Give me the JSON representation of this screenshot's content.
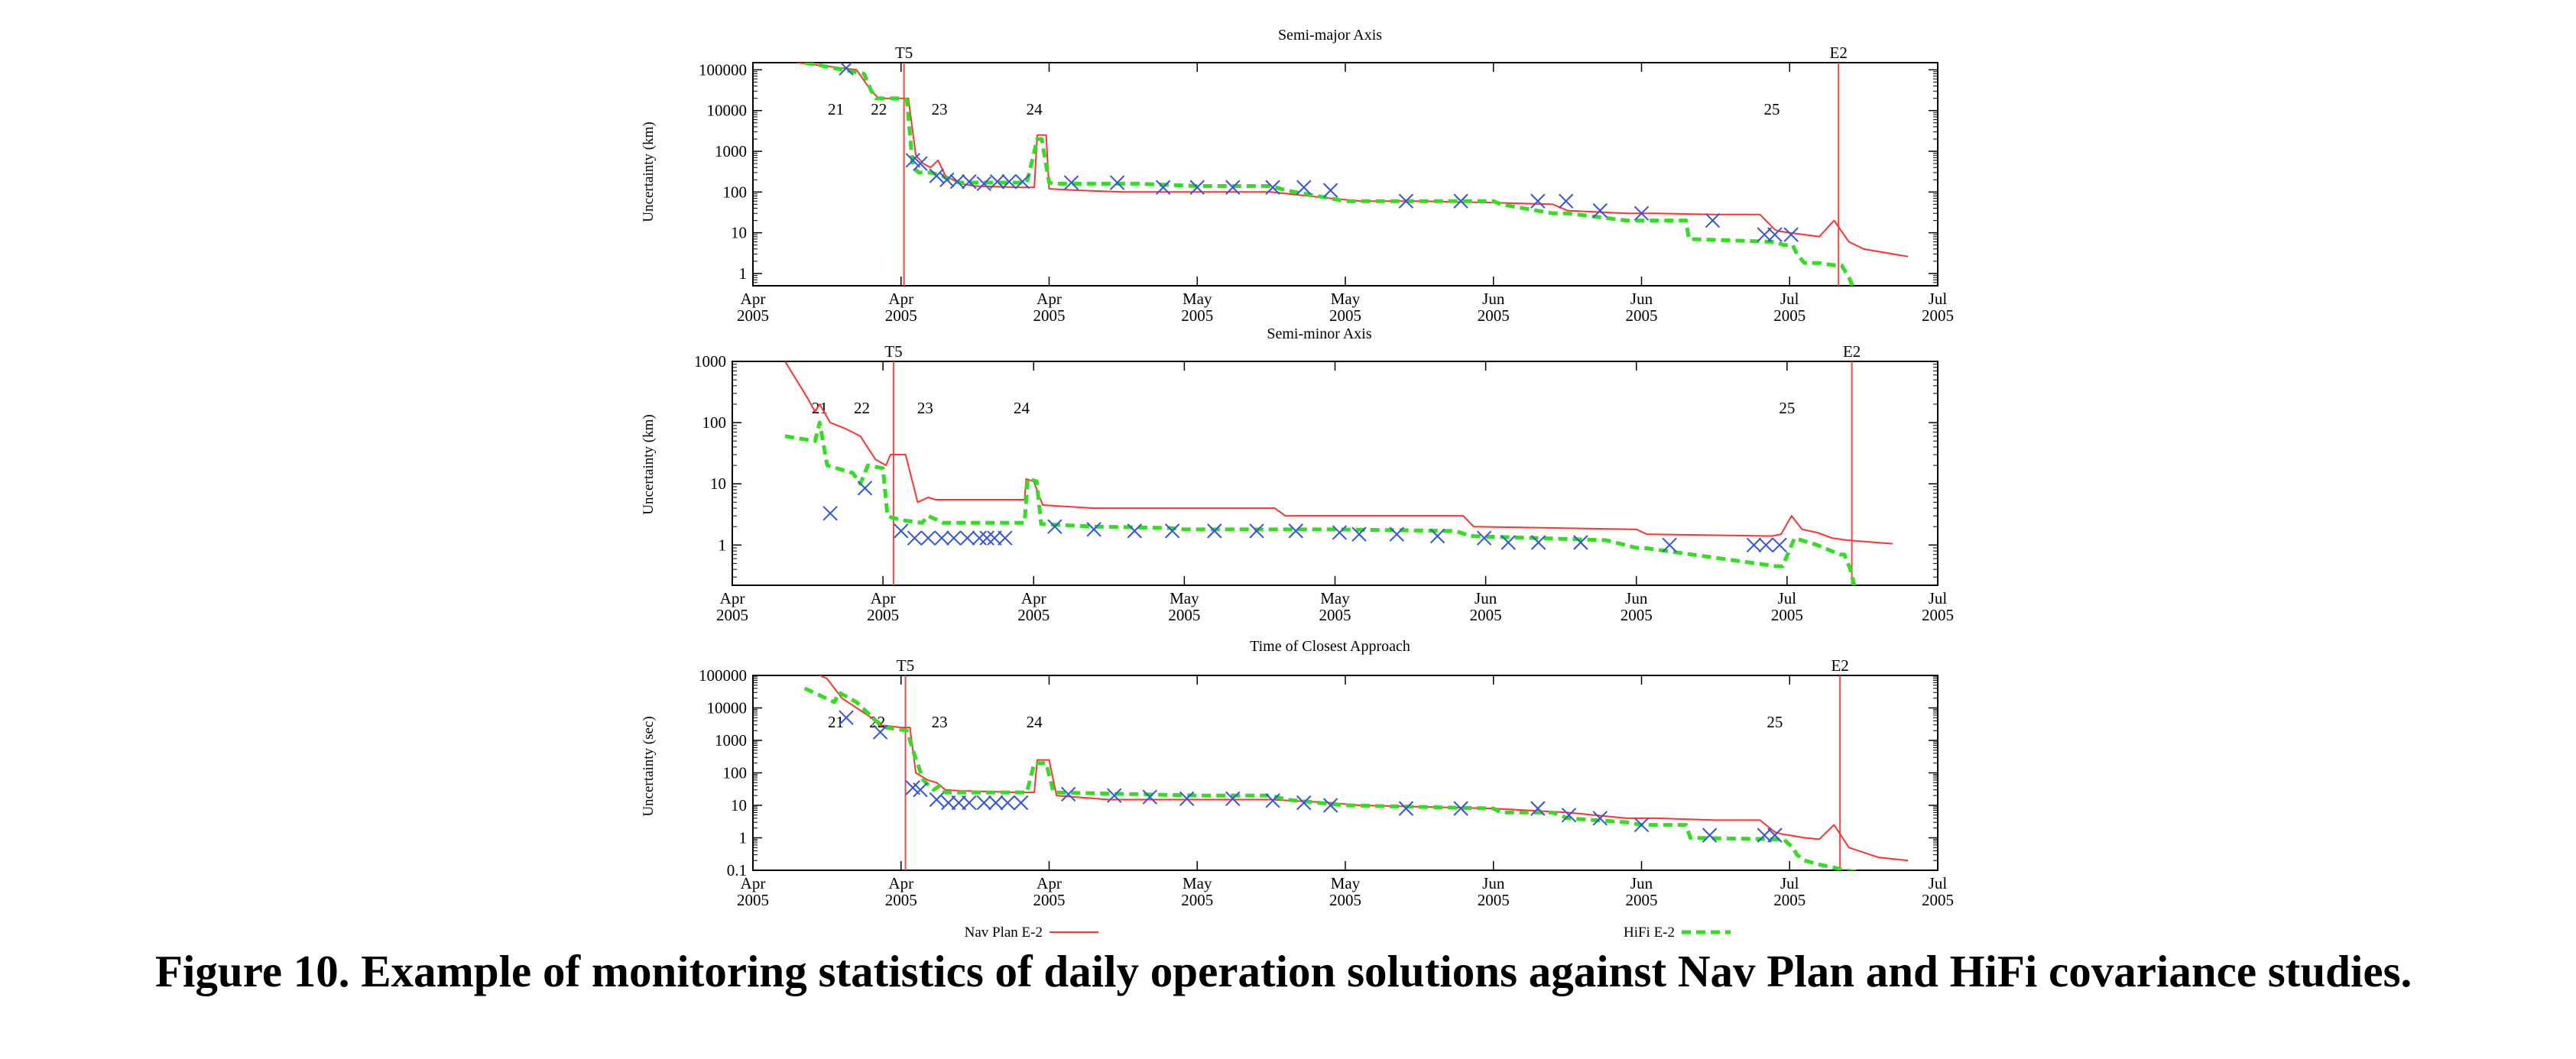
{
  "caption": "Figure 10. Example of monitoring statistics of daily operation solutions against Nav Plan and HiFi covariance studies.",
  "colors": {
    "nav_plan": "#ff3333",
    "hifi": "#33dd22",
    "daily_solution": "#3355dd",
    "event_line": "#ff4444"
  },
  "legend": [
    {
      "label": "Nav Plan E-2",
      "style": "solid-red"
    },
    {
      "label": "HiFi E-2",
      "style": "dashed-green"
    }
  ],
  "x_tick_labels": [
    {
      "month": "Apr",
      "year": "2005"
    },
    {
      "month": "Apr",
      "year": "2005"
    },
    {
      "month": "Apr",
      "year": "2005"
    },
    {
      "month": "May",
      "year": "2005"
    },
    {
      "month": "May",
      "year": "2005"
    },
    {
      "month": "Jun",
      "year": "2005"
    },
    {
      "month": "Jun",
      "year": "2005"
    },
    {
      "month": "Jul",
      "year": "2005"
    },
    {
      "month": "Jul",
      "year": "2005"
    }
  ],
  "chart_data": [
    {
      "type": "line",
      "title": "Semi-major Axis",
      "ylabel": "Uncertainty (km)",
      "yscale": "log",
      "ylim": [
        0.5,
        150000
      ],
      "xlim": [
        0,
        80
      ],
      "ytick_labels": [
        "1",
        "10",
        "100",
        "1000",
        "10000",
        "100000"
      ],
      "ytick_values": [
        1,
        10,
        100,
        1000,
        10000,
        100000
      ],
      "events": [
        {
          "label": "T5",
          "x": 10.2
        },
        {
          "label": "E2",
          "x": 73.3
        }
      ],
      "encounters": [
        {
          "label": "21",
          "x": 5.6
        },
        {
          "label": "22",
          "x": 8.5
        },
        {
          "label": "23",
          "x": 12.6
        },
        {
          "label": "24",
          "x": 19
        },
        {
          "label": "25",
          "x": 68.8
        }
      ],
      "series": [
        {
          "name": "Nav Plan E-2",
          "style": "solid",
          "x": [
            3,
            7,
            8,
            8.5,
            10.5,
            11,
            11.5,
            12,
            12.5,
            13,
            13.5,
            14,
            15,
            18,
            19,
            19.2,
            19.8,
            20,
            22,
            25,
            30,
            32,
            35,
            39,
            41,
            45,
            50,
            54,
            55,
            59,
            61,
            65,
            68,
            69,
            69.2,
            70,
            71,
            72,
            73,
            74,
            75,
            77,
            78
          ],
          "y": [
            150000,
            100000,
            30000,
            20000,
            20000,
            800,
            500,
            400,
            600,
            250,
            200,
            160,
            140,
            130,
            130,
            2500,
            2500,
            120,
            110,
            100,
            100,
            100,
            100,
            70,
            60,
            60,
            55,
            50,
            35,
            30,
            30,
            28,
            28,
            12,
            11,
            10,
            9,
            8,
            20,
            6,
            4,
            3,
            2.6
          ]
        },
        {
          "name": "HiFi E-2",
          "style": "dashed",
          "x": [
            3.5,
            5,
            7.5,
            8,
            8.3,
            10,
            10.4,
            10.8,
            11.2,
            12,
            12.8,
            13.2,
            14,
            18.5,
            19.2,
            19.5,
            20,
            20.3,
            23,
            26,
            30,
            35,
            36,
            40,
            50,
            50.5,
            54,
            55,
            59,
            60,
            63,
            63.2,
            69,
            69.6,
            70.2,
            70.5,
            71,
            72,
            73,
            73.5,
            74,
            74.5
          ],
          "y": [
            150000,
            120000,
            80000,
            30000,
            20000,
            20000,
            18000,
            400,
            300,
            300,
            250,
            200,
            170,
            170,
            2000,
            2000,
            170,
            160,
            160,
            160,
            140,
            140,
            110,
            60,
            60,
            50,
            30,
            30,
            20,
            20,
            20,
            7,
            6,
            5,
            5,
            3,
            1.8,
            1.8,
            1.6,
            1.6,
            0.8,
            0.3
          ]
        },
        {
          "name": "daily solutions",
          "style": "x-marker",
          "x": [
            6.3,
            10.8,
            11.3,
            12.4,
            13.1,
            13.8,
            14.6,
            15.6,
            16.5,
            17.3,
            18.2,
            21.5,
            24.6,
            27.7,
            30,
            32.4,
            35.1,
            37.2,
            39,
            44.1,
            47.8,
            53,
            54.9,
            57.2,
            60,
            64.8,
            68.3,
            69,
            70.1
          ],
          "y": [
            110000,
            600,
            500,
            250,
            200,
            180,
            180,
            160,
            180,
            180,
            180,
            170,
            170,
            130,
            130,
            130,
            130,
            130,
            110,
            60,
            60,
            60,
            60,
            35,
            30,
            20,
            9,
            9,
            9
          ]
        }
      ]
    },
    {
      "type": "line",
      "title": "Semi-minor Axis",
      "ylabel": "Uncertainty (km)",
      "yscale": "log",
      "ylim": [
        0.22,
        1000
      ],
      "xlim": [
        0,
        80
      ],
      "ytick_labels": [
        "1",
        "10",
        "100",
        "1000"
      ],
      "ytick_values": [
        1,
        10,
        100,
        1000
      ],
      "events": [
        {
          "label": "T5",
          "x": 10.7
        },
        {
          "label": "E2",
          "x": 74.3
        }
      ],
      "encounters": [
        {
          "label": "21",
          "x": 5.8
        },
        {
          "label": "22",
          "x": 8.6
        },
        {
          "label": "23",
          "x": 12.8
        },
        {
          "label": "24",
          "x": 19.2
        },
        {
          "label": "25",
          "x": 70
        }
      ],
      "series": [
        {
          "name": "Nav Plan E-2",
          "style": "solid",
          "x": [
            3.5,
            5,
            5.5,
            5.8,
            6.5,
            7.5,
            8.5,
            9.5,
            10.2,
            10.5,
            11.5,
            12.3,
            13,
            13.5,
            15,
            18,
            19.4,
            19.5,
            20,
            20.6,
            24,
            31,
            36,
            36.7,
            45,
            48.5,
            49.2,
            60,
            60.7,
            69,
            69.6,
            70.3,
            71,
            72,
            73,
            74,
            77
          ],
          "y": [
            1000,
            250,
            150,
            200,
            100,
            80,
            60,
            25,
            20,
            30,
            30,
            5,
            6,
            5.5,
            5.5,
            5.5,
            5.5,
            12,
            11,
            4.5,
            4,
            4,
            4,
            3,
            3,
            3,
            2,
            1.8,
            1.5,
            1.4,
            1.5,
            3,
            1.8,
            1.6,
            1.3,
            1.2,
            1.05
          ]
        },
        {
          "name": "HiFi E-2",
          "style": "dashed",
          "x": [
            3.5,
            5.5,
            5.8,
            6.3,
            8,
            8.5,
            9,
            10,
            10.3,
            10.6,
            11.5,
            12.6,
            13,
            14,
            18,
            19.4,
            19.6,
            20.2,
            20.5,
            24,
            29,
            30,
            40,
            48,
            49,
            58,
            60,
            60.5,
            69.3,
            69.7,
            70.5,
            72,
            73.5,
            73.8,
            74.2,
            74.5
          ],
          "y": [
            60,
            50,
            100,
            20,
            15,
            10,
            20,
            18,
            3,
            2.8,
            2.5,
            2.3,
            3,
            2.3,
            2.3,
            2.3,
            12,
            11,
            2.2,
            2,
            1.9,
            1.8,
            1.8,
            1.7,
            1.4,
            1.2,
            0.9,
            0.9,
            0.45,
            0.45,
            1.3,
            1,
            0.7,
            0.7,
            0.4,
            0.2
          ]
        },
        {
          "name": "daily solutions",
          "style": "x-marker",
          "x": [
            6.5,
            8.8,
            11.2,
            12.1,
            13,
            13.9,
            14.7,
            15.6,
            16.4,
            16.9,
            17.4,
            18.1,
            21.4,
            24,
            26.7,
            29.2,
            32,
            34.8,
            37.4,
            40.3,
            41.6,
            44.1,
            46.8,
            49.9,
            51.5,
            53.5,
            56.3,
            62.2,
            67.8,
            68.6,
            69.5
          ],
          "y": [
            3.3,
            8.5,
            1.7,
            1.3,
            1.3,
            1.3,
            1.3,
            1.3,
            1.3,
            1.3,
            1.3,
            1.3,
            2,
            1.8,
            1.7,
            1.7,
            1.7,
            1.7,
            1.7,
            1.6,
            1.5,
            1.5,
            1.4,
            1.3,
            1.1,
            1.1,
            1.1,
            1,
            1,
            1,
            1
          ]
        }
      ]
    },
    {
      "type": "line",
      "title": "Time of Closest Approach",
      "ylabel": "Uncertainty (sec)",
      "yscale": "log",
      "ylim": [
        0.1,
        100000
      ],
      "xlim": [
        0,
        80
      ],
      "ytick_labels": [
        "0.1",
        "1",
        "10",
        "100",
        "1000",
        "10000",
        "100000"
      ],
      "ytick_values": [
        0.1,
        1,
        10,
        100,
        1000,
        10000,
        100000
      ],
      "events": [
        {
          "label": "T5",
          "x": 10.3
        },
        {
          "label": "E2",
          "x": 73.4
        }
      ],
      "encounters": [
        {
          "label": "21",
          "x": 5.6
        },
        {
          "label": "22",
          "x": 8.4
        },
        {
          "label": "23",
          "x": 12.6
        },
        {
          "label": "24",
          "x": 19
        },
        {
          "label": "25",
          "x": 69
        }
      ],
      "series": [
        {
          "name": "Nav Plan E-2",
          "style": "solid",
          "x": [
            4.5,
            5,
            5.5,
            6,
            7,
            8,
            8.5,
            10,
            10.6,
            11,
            11.8,
            12.4,
            13,
            14,
            18,
            19,
            19.2,
            20,
            20.5,
            24,
            30,
            35,
            39,
            41,
            45,
            50,
            55,
            59,
            61,
            65,
            68,
            69,
            69.5,
            70,
            71,
            72,
            73,
            74,
            76,
            78
          ],
          "y": [
            100000,
            80000,
            40000,
            20000,
            10000,
            5000,
            3000,
            2500,
            2500,
            100,
            60,
            50,
            30,
            28,
            25,
            25,
            250,
            250,
            20,
            15,
            15,
            15,
            12,
            10,
            9,
            8,
            6,
            4,
            4,
            3.5,
            3.5,
            1.5,
            1.3,
            1.2,
            1,
            0.9,
            2.5,
            0.5,
            0.25,
            0.2
          ]
        },
        {
          "name": "HiFi E-2",
          "style": "dashed",
          "x": [
            3.5,
            5.5,
            5.8,
            7,
            8.3,
            9,
            10.4,
            10.8,
            11.5,
            12.2,
            12.6,
            13,
            18.5,
            19,
            19.4,
            19.8,
            20.3,
            30,
            35,
            36,
            40,
            50,
            50.5,
            54,
            55,
            59,
            60,
            63,
            63.3,
            69,
            69.6,
            70.2,
            70.5,
            71,
            72,
            73,
            73.8,
            74.5
          ],
          "y": [
            40000,
            15000,
            30000,
            15000,
            4000,
            2500,
            2000,
            500,
            60,
            30,
            40,
            25,
            25,
            200,
            200,
            200,
            25,
            20,
            20,
            15,
            10,
            8,
            6,
            6,
            4,
            3,
            2.5,
            2.5,
            1,
            0.9,
            0.9,
            0.5,
            0.3,
            0.2,
            0.15,
            0.12,
            0.1,
            0.09
          ]
        },
        {
          "name": "daily solutions",
          "style": "x-marker",
          "x": [
            6.3,
            8.6,
            10.8,
            11.3,
            12.4,
            13.2,
            13.9,
            14.6,
            15.6,
            16.4,
            17.2,
            18.1,
            21.3,
            24.4,
            26.8,
            29.3,
            32.4,
            35.1,
            37.2,
            39,
            44.1,
            47.8,
            53,
            55.1,
            57.2,
            60,
            64.6,
            68.3,
            69
          ],
          "y": [
            5000,
            1800,
            35,
            30,
            15,
            12,
            12,
            12,
            12,
            12,
            12,
            12,
            22,
            20,
            18,
            16,
            16,
            14,
            12,
            10,
            8,
            8,
            8,
            5,
            4,
            2.5,
            1.2,
            1.2,
            1.2
          ]
        }
      ]
    }
  ]
}
